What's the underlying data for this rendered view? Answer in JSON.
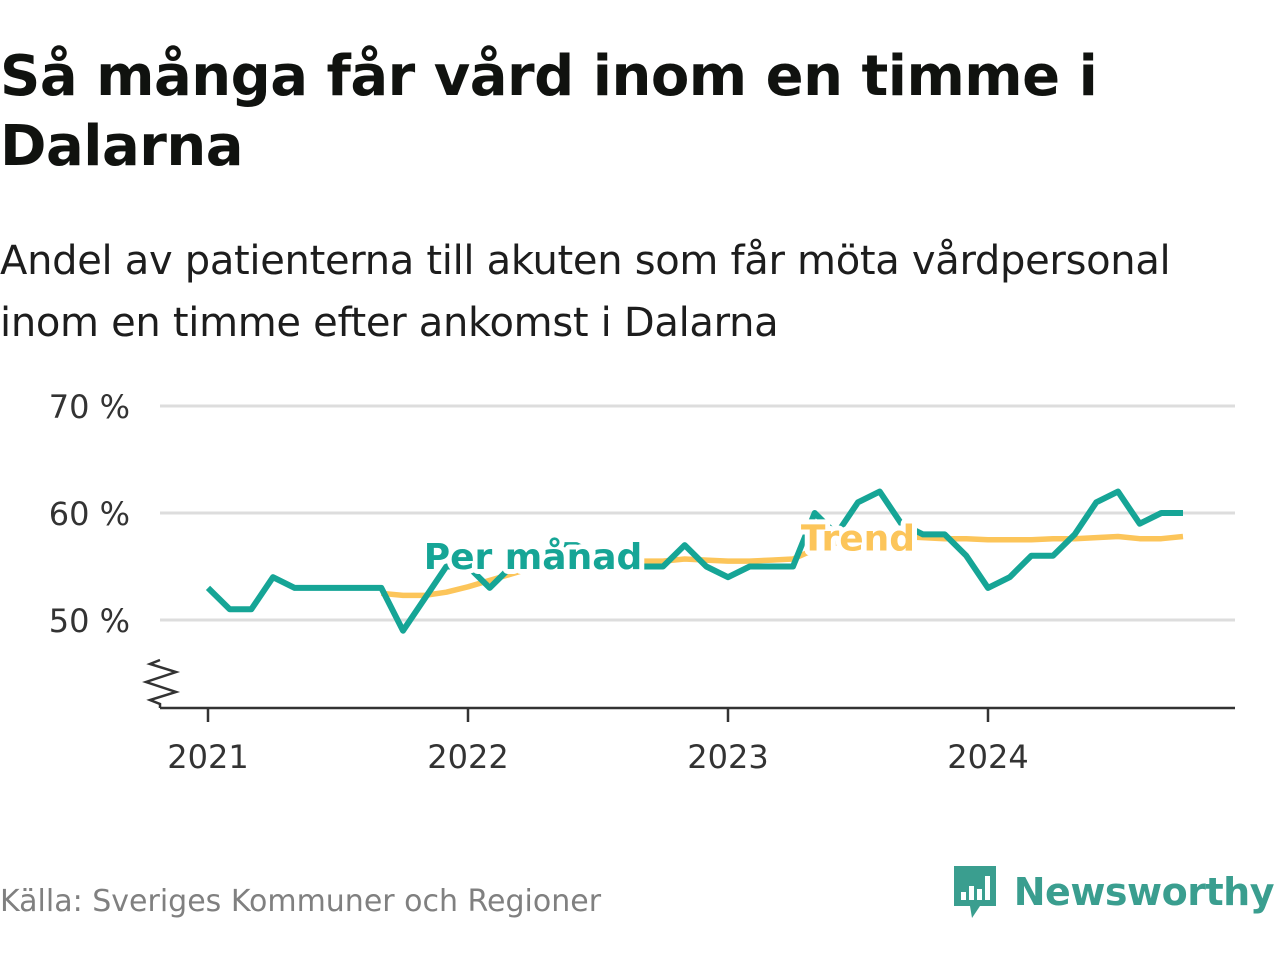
{
  "title": "Så många får vård inom en timme i Dalarna",
  "subtitle": "Andel av patienterna till akuten som får möta vårdpersonal inom en timme efter ankomst i Dalarna",
  "source": "Källa: Sveriges Kommuner och Regioner",
  "brand": "Newsworthy",
  "colors": {
    "monthly": "#16a596",
    "trend": "#fcc55a",
    "grid": "#dddddd",
    "axis": "#333333",
    "brand": "#3a9e8f"
  },
  "chart_data": {
    "type": "line",
    "title": "Så många får vård inom en timme i Dalarna",
    "xlabel": "",
    "ylabel": "",
    "x_ticks": [
      "2021",
      "2022",
      "2023",
      "2024"
    ],
    "y_ticks": [
      "50 %",
      "60 %",
      "70 %"
    ],
    "ylim": [
      0.42,
      0.7
    ],
    "xlim": [
      "2020-10",
      "2024-12"
    ],
    "y_axis_break": true,
    "grid": "horizontal",
    "x": [
      "2021-01",
      "2021-02",
      "2021-03",
      "2021-04",
      "2021-05",
      "2021-06",
      "2021-07",
      "2021-08",
      "2021-09",
      "2021-10",
      "2021-11",
      "2021-12",
      "2022-01",
      "2022-02",
      "2022-03",
      "2022-04",
      "2022-05",
      "2022-06",
      "2022-07",
      "2022-08",
      "2022-09",
      "2022-10",
      "2022-11",
      "2022-12",
      "2023-01",
      "2023-02",
      "2023-03",
      "2023-04",
      "2023-05",
      "2023-06",
      "2023-07",
      "2023-08",
      "2023-09",
      "2023-10",
      "2023-11",
      "2023-12",
      "2024-01",
      "2024-02",
      "2024-03",
      "2024-04",
      "2024-05",
      "2024-06",
      "2024-07",
      "2024-08",
      "2024-09",
      "2024-10"
    ],
    "series": [
      {
        "name": "Per månad",
        "values": [
          0.53,
          0.51,
          0.51,
          0.54,
          0.53,
          0.53,
          0.53,
          0.53,
          0.53,
          0.49,
          0.52,
          0.55,
          0.55,
          0.53,
          0.55,
          0.56,
          0.57,
          0.57,
          0.56,
          0.55,
          0.55,
          0.55,
          0.57,
          0.55,
          0.54,
          0.55,
          0.55,
          0.55,
          0.6,
          0.58,
          0.61,
          0.62,
          0.59,
          0.58,
          0.58,
          0.56,
          0.53,
          0.54,
          0.56,
          0.56,
          0.58,
          0.61,
          0.62,
          0.59,
          0.6,
          0.6
        ]
      },
      {
        "name": "Trend",
        "values": [
          null,
          null,
          null,
          null,
          null,
          null,
          null,
          null,
          0.525,
          0.523,
          0.523,
          0.526,
          0.531,
          0.537,
          0.543,
          0.549,
          0.553,
          0.555,
          0.555,
          0.555,
          0.555,
          0.555,
          0.557,
          0.556,
          0.555,
          0.555,
          0.556,
          0.557,
          0.566,
          0.572,
          0.577,
          0.579,
          0.578,
          0.577,
          0.576,
          0.576,
          0.575,
          0.575,
          0.575,
          0.576,
          0.576,
          0.577,
          0.578,
          0.576,
          0.576,
          0.578
        ]
      }
    ],
    "label_positions": {
      "Per månad": "2022-04",
      "Trend": "2023-07"
    }
  }
}
